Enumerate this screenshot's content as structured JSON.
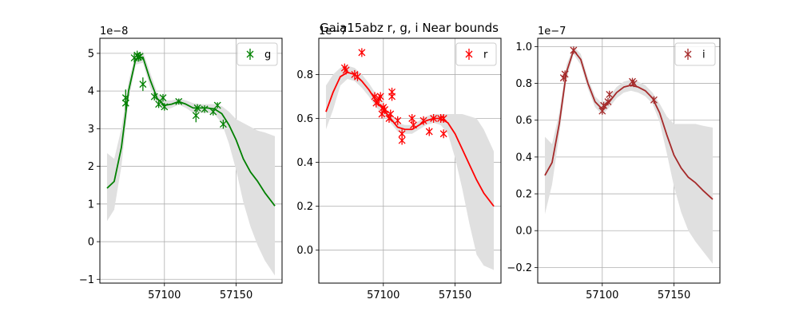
{
  "title": "Gaia15abz  r, g, i Near bounds",
  "chart_data": [
    {
      "type": "line",
      "name": "g",
      "color": "#008000",
      "band_color": "#e0e0e0",
      "offset_text": "1e−8",
      "xlim": [
        57055,
        57182
      ],
      "ylim": [
        -1.1,
        5.4
      ],
      "xticks": [
        57100,
        57150
      ],
      "yticks": [
        -1,
        0,
        1,
        2,
        3,
        4,
        5
      ],
      "ytick_labels": [
        "−1",
        "0",
        "1",
        "2",
        "3",
        "4",
        "5"
      ],
      "grid": true,
      "legend": {
        "position": "top-right",
        "label": "g"
      },
      "model_x": [
        57060,
        57065,
        57070,
        57075,
        57080,
        57085,
        57090,
        57095,
        57100,
        57105,
        57110,
        57115,
        57120,
        57125,
        57130,
        57135,
        57140,
        57145,
        57150,
        57155,
        57160,
        57165,
        57170,
        57177
      ],
      "model_y": [
        1.42,
        1.6,
        2.5,
        4.0,
        4.85,
        4.9,
        4.3,
        3.8,
        3.62,
        3.65,
        3.72,
        3.65,
        3.55,
        3.55,
        3.55,
        3.52,
        3.4,
        3.1,
        2.7,
        2.2,
        1.85,
        1.6,
        1.3,
        0.95
      ],
      "band_upper": [
        2.35,
        2.2,
        3.0,
        4.25,
        5.0,
        5.05,
        4.5,
        3.95,
        3.75,
        3.75,
        3.8,
        3.75,
        3.68,
        3.65,
        3.65,
        3.65,
        3.6,
        3.45,
        3.25,
        3.15,
        3.05,
        2.95,
        2.9,
        2.8
      ],
      "band_lower": [
        0.55,
        0.85,
        2.0,
        3.75,
        4.7,
        4.75,
        4.1,
        3.65,
        3.5,
        3.55,
        3.64,
        3.55,
        3.42,
        3.42,
        3.42,
        3.38,
        3.15,
        2.6,
        1.9,
        1.05,
        0.4,
        -0.1,
        -0.5,
        -0.9
      ],
      "points": [
        {
          "x": 57073,
          "y": 3.82,
          "err": 0.22
        },
        {
          "x": 57073,
          "y": 3.68,
          "err": 0.2
        },
        {
          "x": 57079,
          "y": 4.88,
          "err": 0.12
        },
        {
          "x": 57081,
          "y": 4.95,
          "err": 0.12
        },
        {
          "x": 57082,
          "y": 4.9,
          "err": 0.12
        },
        {
          "x": 57083,
          "y": 4.92,
          "err": 0.12
        },
        {
          "x": 57085,
          "y": 4.18,
          "err": 0.18
        },
        {
          "x": 57093,
          "y": 3.85,
          "err": 0.1
        },
        {
          "x": 57096,
          "y": 3.65,
          "err": 0.1
        },
        {
          "x": 57099,
          "y": 3.82,
          "err": 0.1
        },
        {
          "x": 57100,
          "y": 3.58,
          "err": 0.1
        },
        {
          "x": 57110,
          "y": 3.72,
          "err": 0.08
        },
        {
          "x": 57122,
          "y": 3.35,
          "err": 0.18
        },
        {
          "x": 57123,
          "y": 3.55,
          "err": 0.1
        },
        {
          "x": 57128,
          "y": 3.52,
          "err": 0.1
        },
        {
          "x": 57134,
          "y": 3.45,
          "err": 0.1
        },
        {
          "x": 57137,
          "y": 3.62,
          "err": 0.08
        },
        {
          "x": 57141,
          "y": 3.12,
          "err": 0.12
        }
      ]
    },
    {
      "type": "line",
      "name": "r",
      "color": "#ff0000",
      "band_color": "#e0e0e0",
      "offset_text": "1e−7",
      "xlim": [
        57055,
        57182
      ],
      "ylim": [
        -0.15,
        0.965
      ],
      "xticks": [
        57100,
        57150
      ],
      "yticks": [
        0.0,
        0.2,
        0.4,
        0.6,
        0.8
      ],
      "ytick_labels": [
        "0.0",
        "0.2",
        "0.4",
        "0.6",
        "0.8"
      ],
      "grid": true,
      "legend": {
        "position": "top-right",
        "label": "r"
      },
      "model_x": [
        57060,
        57065,
        57070,
        57075,
        57080,
        57085,
        57090,
        57095,
        57100,
        57105,
        57110,
        57115,
        57120,
        57125,
        57130,
        57135,
        57140,
        57145,
        57150,
        57155,
        57160,
        57165,
        57170,
        57177
      ],
      "model_y": [
        0.63,
        0.72,
        0.79,
        0.81,
        0.8,
        0.77,
        0.73,
        0.68,
        0.64,
        0.6,
        0.56,
        0.55,
        0.55,
        0.57,
        0.59,
        0.6,
        0.6,
        0.58,
        0.53,
        0.46,
        0.39,
        0.32,
        0.26,
        0.2
      ],
      "band_upper": [
        0.75,
        0.8,
        0.83,
        0.84,
        0.83,
        0.8,
        0.76,
        0.71,
        0.66,
        0.62,
        0.58,
        0.57,
        0.57,
        0.59,
        0.61,
        0.62,
        0.62,
        0.62,
        0.62,
        0.62,
        0.61,
        0.6,
        0.55,
        0.45
      ],
      "band_lower": [
        0.55,
        0.64,
        0.75,
        0.78,
        0.77,
        0.74,
        0.7,
        0.65,
        0.62,
        0.58,
        0.54,
        0.53,
        0.53,
        0.55,
        0.57,
        0.58,
        0.57,
        0.53,
        0.42,
        0.28,
        0.12,
        -0.02,
        -0.07,
        -0.09
      ],
      "points": [
        {
          "x": 57073,
          "y": 0.83,
          "err": 0.02
        },
        {
          "x": 57074,
          "y": 0.82,
          "err": 0.02
        },
        {
          "x": 57080,
          "y": 0.8,
          "err": 0.02
        },
        {
          "x": 57082,
          "y": 0.79,
          "err": 0.02
        },
        {
          "x": 57085,
          "y": 0.9,
          "err": 0.02
        },
        {
          "x": 57094,
          "y": 0.7,
          "err": 0.02
        },
        {
          "x": 57095,
          "y": 0.67,
          "err": 0.02
        },
        {
          "x": 57097,
          "y": 0.69,
          "err": 0.02
        },
        {
          "x": 57098,
          "y": 0.7,
          "err": 0.02
        },
        {
          "x": 57099,
          "y": 0.62,
          "err": 0.02
        },
        {
          "x": 57100,
          "y": 0.65,
          "err": 0.02
        },
        {
          "x": 57101,
          "y": 0.64,
          "err": 0.02
        },
        {
          "x": 57104,
          "y": 0.6,
          "err": 0.02
        },
        {
          "x": 57105,
          "y": 0.62,
          "err": 0.02
        },
        {
          "x": 57106,
          "y": 0.72,
          "err": 0.02
        },
        {
          "x": 57106,
          "y": 0.7,
          "err": 0.02
        },
        {
          "x": 57110,
          "y": 0.59,
          "err": 0.02
        },
        {
          "x": 57113,
          "y": 0.5,
          "err": 0.02
        },
        {
          "x": 57113,
          "y": 0.53,
          "err": 0.02
        },
        {
          "x": 57120,
          "y": 0.6,
          "err": 0.02
        },
        {
          "x": 57121,
          "y": 0.57,
          "err": 0.02
        },
        {
          "x": 57128,
          "y": 0.59,
          "err": 0.02
        },
        {
          "x": 57132,
          "y": 0.54,
          "err": 0.02
        },
        {
          "x": 57135,
          "y": 0.6,
          "err": 0.02
        },
        {
          "x": 57140,
          "y": 0.6,
          "err": 0.02
        },
        {
          "x": 57142,
          "y": 0.6,
          "err": 0.02
        },
        {
          "x": 57142,
          "y": 0.53,
          "err": 0.02
        }
      ]
    },
    {
      "type": "line",
      "name": "i",
      "color": "#a52a2a",
      "band_color": "#e0e0e0",
      "offset_text": "1e−7",
      "xlim": [
        57055,
        57182
      ],
      "ylim": [
        -0.285,
        1.045
      ],
      "xticks": [
        57100,
        57150
      ],
      "yticks": [
        -0.2,
        0.0,
        0.2,
        0.4,
        0.6,
        0.8,
        1.0
      ],
      "ytick_labels": [
        "−0.2",
        "0.0",
        "0.2",
        "0.4",
        "0.6",
        "0.8",
        "1.0"
      ],
      "grid": true,
      "legend": {
        "position": "top-right",
        "label": "i"
      },
      "model_x": [
        57060,
        57065,
        57070,
        57075,
        57080,
        57085,
        57090,
        57095,
        57100,
        57105,
        57110,
        57115,
        57120,
        57125,
        57130,
        57135,
        57140,
        57145,
        57150,
        57155,
        57160,
        57165,
        57170,
        57177
      ],
      "model_y": [
        0.3,
        0.37,
        0.58,
        0.86,
        0.98,
        0.93,
        0.8,
        0.7,
        0.66,
        0.7,
        0.75,
        0.78,
        0.79,
        0.78,
        0.76,
        0.72,
        0.64,
        0.52,
        0.41,
        0.34,
        0.29,
        0.26,
        0.22,
        0.17
      ],
      "band_upper": [
        0.51,
        0.47,
        0.64,
        0.9,
        1.0,
        0.96,
        0.83,
        0.73,
        0.69,
        0.73,
        0.78,
        0.81,
        0.82,
        0.81,
        0.79,
        0.75,
        0.69,
        0.62,
        0.58,
        0.58,
        0.58,
        0.58,
        0.57,
        0.56
      ],
      "band_lower": [
        0.09,
        0.25,
        0.52,
        0.82,
        0.96,
        0.9,
        0.77,
        0.67,
        0.63,
        0.67,
        0.72,
        0.75,
        0.76,
        0.75,
        0.73,
        0.69,
        0.59,
        0.42,
        0.24,
        0.1,
        0.0,
        -0.06,
        -0.11,
        -0.18
      ],
      "points": [
        {
          "x": 57073,
          "y": 0.83,
          "err": 0.02
        },
        {
          "x": 57074,
          "y": 0.85,
          "err": 0.02
        },
        {
          "x": 57080,
          "y": 0.98,
          "err": 0.02
        },
        {
          "x": 57100,
          "y": 0.65,
          "err": 0.02
        },
        {
          "x": 57101,
          "y": 0.68,
          "err": 0.02
        },
        {
          "x": 57104,
          "y": 0.7,
          "err": 0.02
        },
        {
          "x": 57105,
          "y": 0.74,
          "err": 0.02
        },
        {
          "x": 57121,
          "y": 0.81,
          "err": 0.02
        },
        {
          "x": 57122,
          "y": 0.8,
          "err": 0.02
        },
        {
          "x": 57136,
          "y": 0.71,
          "err": 0.02
        }
      ]
    }
  ]
}
